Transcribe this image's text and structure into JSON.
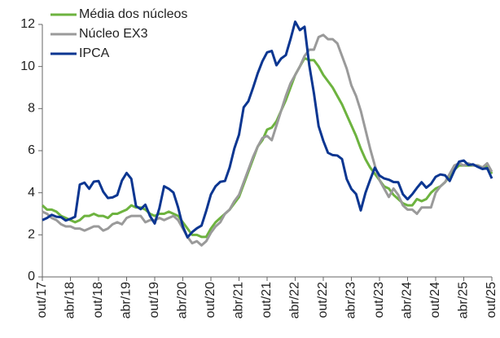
{
  "chart_data": {
    "type": "line",
    "categories": [
      "out/17",
      null,
      null,
      null,
      null,
      null,
      "abr/18",
      null,
      null,
      null,
      null,
      null,
      "out/18",
      null,
      null,
      null,
      null,
      null,
      "abr/19",
      null,
      null,
      null,
      null,
      null,
      "out/19",
      null,
      null,
      null,
      null,
      null,
      "abr/20",
      null,
      null,
      null,
      null,
      null,
      "out/20",
      null,
      null,
      null,
      null,
      null,
      "abr/21",
      null,
      null,
      null,
      null,
      null,
      "out/21",
      null,
      null,
      null,
      null,
      null,
      "abr/22",
      null,
      null,
      null,
      null,
      null,
      "out/22",
      null,
      null,
      null,
      null,
      null,
      "abr/23",
      null,
      null,
      null,
      null,
      null,
      "out/23",
      null,
      null,
      null,
      null,
      null,
      "abr/24",
      null,
      null,
      null,
      null,
      null,
      "out/24",
      null,
      null,
      null,
      null,
      null,
      "abr/25",
      null,
      null,
      null,
      null,
      null,
      "out/25"
    ],
    "series": [
      {
        "name": "Média dos núcleos",
        "color": "#6db33f",
        "values": [
          3.4,
          3.2,
          3.2,
          3.1,
          2.9,
          2.8,
          2.7,
          2.6,
          2.7,
          2.9,
          2.9,
          3.0,
          2.9,
          2.9,
          2.8,
          3.0,
          3.0,
          3.1,
          3.2,
          3.4,
          3.3,
          3.3,
          3.2,
          3.0,
          2.9,
          3.0,
          3.0,
          3.1,
          3.0,
          2.9,
          2.6,
          2.3,
          2.0,
          2.0,
          1.9,
          1.9,
          2.3,
          2.6,
          2.8,
          3.0,
          3.2,
          3.5,
          3.8,
          4.4,
          5.0,
          5.6,
          6.2,
          6.5,
          7.0,
          7.1,
          7.4,
          7.9,
          8.4,
          9.0,
          9.6,
          10.0,
          10.4,
          10.3,
          10.3,
          10.0,
          9.6,
          9.3,
          9.0,
          8.6,
          8.2,
          7.7,
          7.2,
          6.7,
          6.1,
          5.6,
          5.2,
          4.9,
          4.6,
          4.3,
          4.2,
          3.9,
          3.7,
          3.5,
          3.4,
          3.4,
          3.7,
          3.6,
          3.7,
          4.0,
          4.2,
          4.3,
          4.5,
          4.8,
          5.1,
          5.3,
          5.3,
          5.3,
          5.3,
          5.3,
          5.2,
          5.3,
          4.9
        ]
      },
      {
        "name": "Núcleo EX3",
        "color": "#9a9a9a",
        "values": [
          3.1,
          3.0,
          2.8,
          2.7,
          2.5,
          2.4,
          2.4,
          2.3,
          2.3,
          2.2,
          2.3,
          2.4,
          2.4,
          2.2,
          2.3,
          2.5,
          2.6,
          2.5,
          2.8,
          2.9,
          2.9,
          2.9,
          2.6,
          2.7,
          2.7,
          2.8,
          2.7,
          2.8,
          2.9,
          2.7,
          2.3,
          1.9,
          1.6,
          1.7,
          1.5,
          1.7,
          2.1,
          2.4,
          2.6,
          3.0,
          3.2,
          3.6,
          3.9,
          4.5,
          5.1,
          5.7,
          6.2,
          6.6,
          6.7,
          6.5,
          7.2,
          7.9,
          8.6,
          9.2,
          9.6,
          10.0,
          10.5,
          10.8,
          10.8,
          11.4,
          11.5,
          11.3,
          11.3,
          11.1,
          10.5,
          9.9,
          9.1,
          8.6,
          7.9,
          7.0,
          6.1,
          5.3,
          4.6,
          4.2,
          3.8,
          4.2,
          3.9,
          3.4,
          3.2,
          3.2,
          3.0,
          3.3,
          3.3,
          3.3,
          4.0,
          4.3,
          4.5,
          4.9,
          5.3,
          5.4,
          5.3,
          5.4,
          5.3,
          5.3,
          5.2,
          5.4,
          5.0
        ]
      },
      {
        "name": "IPCA",
        "color": "#0b3691",
        "values": [
          2.7,
          2.8,
          2.95,
          2.86,
          2.84,
          2.68,
          2.76,
          2.86,
          4.39,
          4.48,
          4.19,
          4.53,
          4.56,
          4.05,
          3.75,
          3.78,
          3.89,
          4.58,
          4.94,
          4.66,
          3.37,
          3.22,
          3.43,
          2.89,
          2.54,
          3.27,
          4.31,
          4.19,
          4.01,
          3.3,
          2.4,
          1.88,
          2.13,
          2.31,
          2.44,
          3.14,
          3.92,
          4.31,
          4.52,
          4.56,
          5.2,
          6.1,
          6.76,
          8.06,
          8.35,
          8.99,
          9.68,
          10.25,
          10.67,
          10.74,
          10.06,
          10.38,
          10.54,
          11.3,
          12.13,
          11.73,
          11.89,
          10.07,
          8.73,
          7.17,
          6.47,
          5.9,
          5.79,
          5.77,
          5.6,
          4.65,
          4.18,
          3.94,
          3.16,
          3.99,
          4.61,
          5.19,
          4.82,
          4.68,
          4.62,
          4.51,
          4.5,
          3.93,
          3.69,
          3.93,
          4.23,
          4.5,
          4.24,
          4.42,
          4.76,
          4.87,
          4.83,
          4.56,
          5.06,
          5.48,
          5.53,
          5.32,
          5.35,
          5.23,
          5.13,
          5.17,
          4.68
        ]
      }
    ],
    "ylim": [
      0,
      12
    ],
    "yticks": [
      0,
      2,
      4,
      6,
      8,
      10,
      12
    ],
    "legend": "upper left",
    "grid": false
  }
}
